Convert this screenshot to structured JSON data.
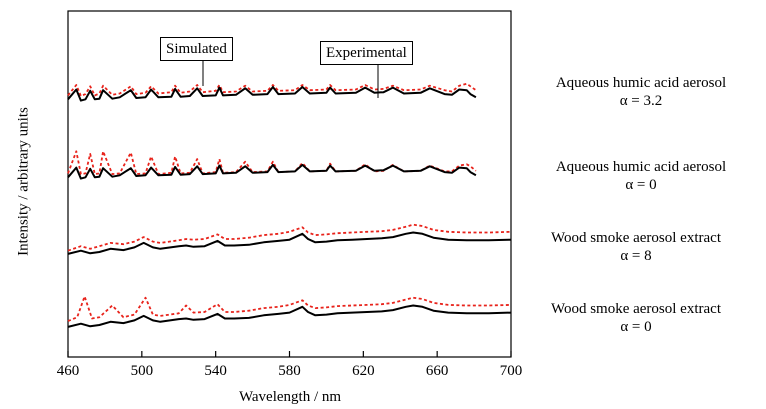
{
  "chart_data": {
    "type": "line",
    "xlabel": "Wavelength / nm",
    "ylabel": "Intensity / arbitrary units",
    "xlim": [
      460,
      700
    ],
    "xticks": [
      460,
      500,
      540,
      580,
      620,
      660,
      700
    ],
    "grid": false,
    "legend": "none",
    "annotations": [
      {
        "text": "Simulated",
        "points_to_x": 534,
        "target": "red dotted curve, top panel"
      },
      {
        "text": "Experimental",
        "points_to_x": 629,
        "target": "black solid curve, top panel"
      }
    ],
    "simulated_color": "#e8231b",
    "experimental_color": "#000000",
    "panels": [
      {
        "label_line1": "Aqueous humic acid  aerosol",
        "label_line2": "α = 3.2",
        "series": [
          {
            "style": "red dotted",
            "x": [
              460,
              464.5,
              467,
              469.5,
              472,
              474.5,
              477,
              479,
              484,
              488,
              494,
              497,
              502,
              505,
              509,
              516,
              518,
              521,
              526,
              530,
              533,
              540,
              542,
              544,
              551,
              556,
              560,
              568,
              571,
              574,
              583,
              587,
              591,
              600,
              602,
              605,
              616,
              621,
              626,
              631,
              636,
              642,
              651,
              656,
              664,
              668,
              672,
              676,
              678,
              681
            ],
            "y": [
              0.2,
              1.0,
              0.15,
              0.3,
              0.9,
              0.2,
              0.35,
              0.95,
              0.25,
              0.35,
              0.9,
              0.3,
              0.4,
              0.9,
              0.35,
              0.45,
              0.95,
              0.4,
              0.5,
              1.0,
              0.45,
              0.55,
              1.0,
              0.45,
              0.5,
              0.95,
              0.5,
              0.55,
              1.0,
              0.55,
              0.6,
              1.0,
              0.6,
              0.65,
              1.0,
              0.6,
              0.65,
              1.0,
              0.65,
              0.7,
              0.95,
              0.6,
              0.65,
              0.95,
              0.6,
              0.5,
              0.95,
              1.1,
              0.9,
              0.6
            ]
          },
          {
            "style": "black solid",
            "x": [
              460,
              464.5,
              467,
              469.5,
              472,
              474.5,
              477,
              479,
              484,
              488,
              494,
              497,
              502,
              505,
              509,
              516,
              518,
              521,
              526,
              530,
              533,
              540,
              542,
              544,
              551,
              556,
              560,
              568,
              571,
              574,
              583,
              587,
              591,
              600,
              602,
              605,
              616,
              621,
              626,
              631,
              636,
              642,
              651,
              656,
              664,
              668,
              672,
              676,
              678,
              681
            ],
            "y": [
              -0.1,
              0.65,
              -0.2,
              -0.1,
              0.55,
              -0.1,
              -0.05,
              0.6,
              -0.05,
              0.05,
              0.6,
              0.0,
              0.05,
              0.65,
              0.05,
              0.1,
              0.7,
              0.1,
              0.15,
              0.75,
              0.15,
              0.2,
              0.8,
              0.2,
              0.25,
              0.75,
              0.25,
              0.3,
              0.85,
              0.3,
              0.35,
              0.85,
              0.35,
              0.4,
              0.8,
              0.35,
              0.4,
              0.8,
              0.4,
              0.45,
              0.8,
              0.35,
              0.4,
              0.75,
              0.3,
              0.25,
              0.65,
              0.6,
              0.3,
              0.05
            ]
          }
        ]
      },
      {
        "label_line1": "Aqueous humic acid  aerosol",
        "label_line2": "α = 0",
        "series": [
          {
            "style": "red dotted",
            "x": [
              460,
              464.5,
              467,
              469.5,
              472,
              474.5,
              477,
              479,
              484,
              488,
              494,
              497,
              502,
              505,
              509,
              516,
              518,
              521,
              526,
              530,
              533,
              540,
              542,
              544,
              551,
              556,
              560,
              568,
              571,
              574,
              583,
              587,
              591,
              600,
              602,
              605,
              616,
              621,
              626,
              631,
              636,
              642,
              651,
              656,
              664,
              668,
              672,
              676,
              678,
              681
            ],
            "y": [
              0.2,
              1.9,
              0.15,
              0.2,
              1.7,
              0.15,
              0.2,
              1.9,
              0.15,
              0.2,
              1.8,
              0.15,
              0.2,
              1.5,
              0.15,
              0.25,
              1.5,
              0.2,
              0.25,
              1.3,
              0.2,
              0.3,
              1.3,
              0.25,
              0.3,
              1.1,
              0.3,
              0.35,
              1.1,
              0.3,
              0.35,
              1.0,
              0.35,
              0.4,
              0.95,
              0.35,
              0.4,
              0.9,
              0.35,
              0.4,
              0.85,
              0.35,
              0.4,
              0.8,
              0.35,
              0.35,
              0.8,
              0.9,
              0.75,
              0.4
            ]
          },
          {
            "style": "black solid",
            "x": [
              460,
              464.5,
              467,
              469.5,
              472,
              474.5,
              477,
              479,
              484,
              488,
              494,
              497,
              502,
              505,
              509,
              516,
              518,
              521,
              526,
              530,
              533,
              540,
              542,
              544,
              551,
              556,
              560,
              568,
              571,
              574,
              583,
              587,
              591,
              600,
              602,
              605,
              616,
              621,
              626,
              631,
              636,
              642,
              651,
              656,
              664,
              668,
              672,
              676,
              678,
              681
            ],
            "y": [
              -0.1,
              0.65,
              -0.2,
              -0.1,
              0.55,
              -0.1,
              -0.05,
              0.6,
              -0.05,
              0.05,
              0.6,
              0.0,
              0.05,
              0.65,
              0.05,
              0.1,
              0.7,
              0.1,
              0.15,
              0.75,
              0.15,
              0.2,
              0.8,
              0.2,
              0.25,
              0.75,
              0.25,
              0.3,
              0.85,
              0.3,
              0.35,
              0.85,
              0.35,
              0.4,
              0.8,
              0.35,
              0.4,
              0.8,
              0.4,
              0.45,
              0.8,
              0.35,
              0.4,
              0.75,
              0.3,
              0.25,
              0.65,
              0.6,
              0.3,
              0.05
            ]
          }
        ]
      },
      {
        "label_line1": "Wood smoke aerosol extract",
        "label_line2": "α = 8",
        "series": [
          {
            "style": "red dotted",
            "x": [
              460,
              467,
              472,
              477,
              483,
              490,
              496,
              501,
              506,
              510,
              520,
              524,
              528,
              534,
              541,
              545,
              550,
              558,
              566,
              574,
              580,
              587,
              590,
              594,
              600,
              606,
              614,
              622,
              630,
              636,
              643,
              647,
              652,
              658,
              666,
              676,
              688,
              700
            ],
            "y": [
              0.1,
              0.45,
              0.25,
              0.45,
              0.7,
              0.6,
              0.8,
              1.15,
              0.8,
              0.7,
              0.9,
              1.0,
              0.95,
              1.0,
              1.35,
              1.0,
              1.0,
              1.1,
              1.3,
              1.4,
              1.55,
              1.9,
              1.5,
              1.3,
              1.35,
              1.45,
              1.5,
              1.55,
              1.6,
              1.7,
              1.95,
              2.1,
              2.0,
              1.7,
              1.55,
              1.5,
              1.5,
              1.55
            ]
          },
          {
            "style": "black solid",
            "x": [
              460,
              467,
              472,
              477,
              483,
              490,
              496,
              501,
              506,
              510,
              520,
              524,
              528,
              534,
              541,
              545,
              550,
              558,
              566,
              574,
              580,
              587,
              590,
              594,
              600,
              606,
              614,
              622,
              630,
              636,
              643,
              647,
              652,
              658,
              666,
              676,
              688,
              700
            ],
            "y": [
              -0.15,
              0.1,
              -0.1,
              0.0,
              0.25,
              0.15,
              0.35,
              0.7,
              0.35,
              0.25,
              0.45,
              0.5,
              0.4,
              0.45,
              0.85,
              0.5,
              0.5,
              0.55,
              0.75,
              0.85,
              0.95,
              1.4,
              1.0,
              0.75,
              0.8,
              0.9,
              0.95,
              1.0,
              1.05,
              1.15,
              1.4,
              1.5,
              1.4,
              1.1,
              0.95,
              0.9,
              0.9,
              0.95
            ]
          }
        ]
      },
      {
        "label_line1": "Wood smoke aerosol extract",
        "label_line2": "α = 0",
        "series": [
          {
            "style": "red dotted",
            "x": [
              460,
              465,
              469,
              473,
              477,
              484,
              490,
              496,
              502,
              506,
              510,
              520,
              524,
              528,
              534,
              541,
              545,
              550,
              558,
              566,
              574,
              580,
              587,
              590,
              594,
              600,
              606,
              614,
              622,
              630,
              636,
              643,
              647,
              652,
              658,
              666,
              676,
              688,
              700
            ],
            "y": [
              0.3,
              0.6,
              2.2,
              0.5,
              0.6,
              1.5,
              0.6,
              0.8,
              2.1,
              0.8,
              0.7,
              0.9,
              1.5,
              0.95,
              1.0,
              1.6,
              1.0,
              1.0,
              1.1,
              1.3,
              1.4,
              1.55,
              1.9,
              1.5,
              1.3,
              1.35,
              1.45,
              1.5,
              1.55,
              1.6,
              1.7,
              1.95,
              2.1,
              2.0,
              1.7,
              1.55,
              1.5,
              1.5,
              1.55
            ]
          },
          {
            "style": "black solid",
            "x": [
              460,
              467,
              472,
              477,
              483,
              490,
              496,
              501,
              506,
              510,
              520,
              524,
              528,
              534,
              541,
              545,
              550,
              558,
              566,
              574,
              580,
              587,
              590,
              594,
              600,
              606,
              614,
              622,
              630,
              636,
              643,
              647,
              652,
              658,
              666,
              676,
              688,
              700
            ],
            "y": [
              -0.15,
              0.1,
              -0.1,
              0.0,
              0.25,
              0.15,
              0.35,
              0.7,
              0.35,
              0.25,
              0.45,
              0.5,
              0.4,
              0.45,
              0.85,
              0.5,
              0.5,
              0.55,
              0.75,
              0.85,
              0.95,
              1.4,
              1.0,
              0.75,
              0.8,
              0.9,
              0.95,
              1.0,
              1.05,
              1.15,
              1.4,
              1.5,
              1.4,
              1.1,
              0.95,
              0.9,
              0.9,
              0.95
            ]
          }
        ]
      }
    ]
  }
}
